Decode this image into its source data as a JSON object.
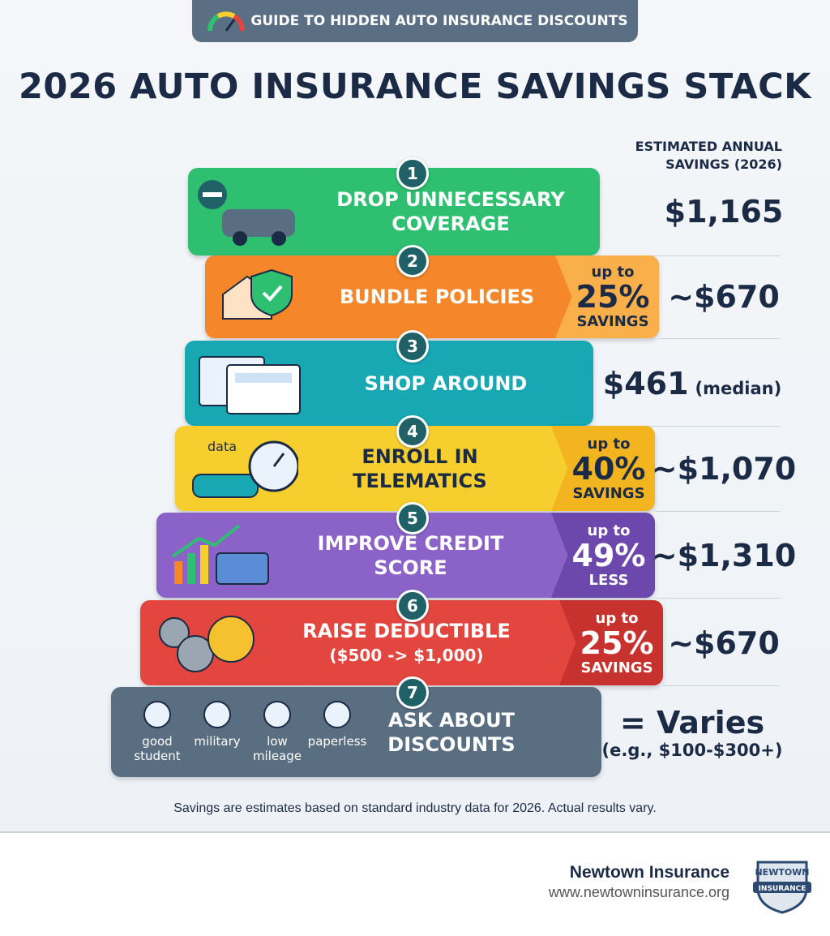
{
  "header": {
    "badge": "GUIDE TO HIDDEN AUTO INSURANCE DISCOUNTS",
    "title": "2026 AUTO INSURANCE SAVINGS STACK",
    "column_label": "ESTIMATED ANNUAL SAVINGS (2026)"
  },
  "steps": [
    {
      "number": "1",
      "label": "DROP UNNECESSARY COVERAGE",
      "savings": "$1,165"
    },
    {
      "number": "2",
      "label": "BUNDLE POLICIES",
      "tag": [
        "up to",
        "25%",
        "SAVINGS"
      ],
      "savings": "~$670"
    },
    {
      "number": "3",
      "label": "SHOP AROUND",
      "savings": "$461",
      "savings_note": "(median)"
    },
    {
      "number": "4",
      "label": "ENROLL IN TELEMATICS",
      "icon_label": "data",
      "tag": [
        "up to",
        "40%",
        "SAVINGS"
      ],
      "savings": "~$1,070"
    },
    {
      "number": "5",
      "label": "IMPROVE CREDIT SCORE",
      "tag": [
        "up to",
        "49%",
        "LESS"
      ],
      "savings": "~$1,310"
    },
    {
      "number": "6",
      "label": "RAISE DEDUCTIBLE",
      "sublabel": "($500 -> $1,000)",
      "tag": [
        "up to",
        "25%",
        "SAVINGS"
      ],
      "savings": "~$670"
    },
    {
      "number": "7",
      "label": "ASK ABOUT DISCOUNTS",
      "items": [
        "good student",
        "military",
        "low mileage",
        "paperless"
      ],
      "savings": "= Varies",
      "savings_note": "(e.g., $100-$300+)"
    }
  ],
  "footnote": "Savings are estimates based on standard industry data for 2026. Actual results vary.",
  "footer": {
    "company": "Newtown Insurance",
    "url": "www.newtowninsurance.org",
    "logo_top": "NEWTOWN",
    "logo_bottom": "INSURANCE"
  }
}
